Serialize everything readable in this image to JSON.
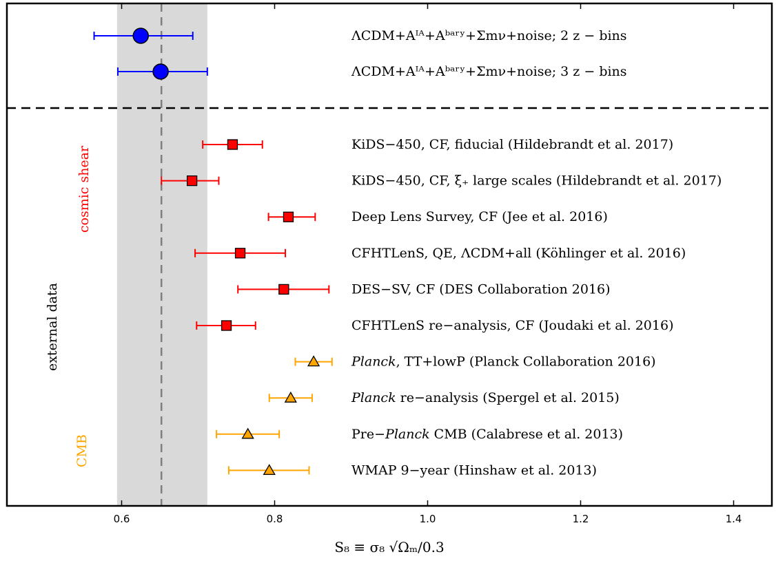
{
  "chart_data": {
    "type": "scatter",
    "subtype": "forest-plot",
    "xlabel": "S₈ ≡ σ₈ √Ωₘ/0.3",
    "xlim": [
      0.45,
      1.45
    ],
    "xticks": [
      0.6,
      0.8,
      1.0,
      1.2,
      1.4
    ],
    "tick_labels": [
      "0.6",
      "0.8",
      "1.0",
      "1.2",
      "1.4"
    ],
    "reference": {
      "value": 0.652,
      "band": [
        0.594,
        0.712
      ],
      "band_color": "#d9d9d9",
      "line_color": "#7f7f7f"
    },
    "colors": {
      "this_work": "#0000ff",
      "cosmic_shear": "#ff0000",
      "cmb": "#ffa500"
    },
    "groups": [
      {
        "name": "cosmic shear",
        "color": "#ff0000"
      },
      {
        "name": "external data",
        "color": "#000000"
      },
      {
        "name": "CMB",
        "color": "#ffa500"
      }
    ],
    "points": [
      {
        "label": "ΛCDM+Aᴵᴬ+Aᵇᵃʳʸ+Σmν+noise; 2 z − bins",
        "value": 0.625,
        "low": 0.564,
        "high": 0.693,
        "marker": "circle",
        "group": "this_work"
      },
      {
        "label": "ΛCDM+Aᴵᴬ+Aᵇᵃʳʸ+Σmν+noise; 3 z − bins",
        "value": 0.651,
        "low": 0.595,
        "high": 0.712,
        "marker": "circle",
        "group": "this_work"
      },
      {
        "label": "KiDS−450,  CF,  fiducial (Hildebrandt et al.  2017)",
        "value": 0.745,
        "low": 0.706,
        "high": 0.784,
        "marker": "square",
        "group": "cosmic_shear"
      },
      {
        "label": "KiDS−450,  CF,  ξ₊  large scales (Hildebrandt et al.  2017)",
        "value": 0.692,
        "low": 0.652,
        "high": 0.727,
        "marker": "square",
        "group": "cosmic_shear"
      },
      {
        "label": "Deep Lens Survey,  CF (Jee et al.  2016)",
        "value": 0.818,
        "low": 0.792,
        "high": 0.853,
        "marker": "square",
        "group": "cosmic_shear"
      },
      {
        "label": "CFHTLenS,  QE,  ΛCDM+all (Köhlinger et al.  2016)",
        "value": 0.755,
        "low": 0.696,
        "high": 0.814,
        "marker": "square",
        "group": "cosmic_shear"
      },
      {
        "label": "DES−SV,  CF (DES Collaboration 2016)",
        "value": 0.812,
        "low": 0.752,
        "high": 0.871,
        "marker": "square",
        "group": "cosmic_shear"
      },
      {
        "label": "CFHTLenS re−analysis,  CF (Joudaki et al.  2016)",
        "value": 0.737,
        "low": 0.698,
        "high": 0.775,
        "marker": "square",
        "group": "cosmic_shear"
      },
      {
        "label_it": "Planck",
        "label_rest": ",  TT+lowP (Planck Collaboration 2016)",
        "value": 0.851,
        "low": 0.827,
        "high": 0.875,
        "marker": "triangle",
        "group": "cmb"
      },
      {
        "label_it": "Planck",
        "label_rest": " re−analysis (Spergel et al.  2015)",
        "value": 0.821,
        "low": 0.793,
        "high": 0.849,
        "marker": "triangle",
        "group": "cmb"
      },
      {
        "label_pre": "Pre−",
        "label_it": "Planck",
        "label_rest": " CMB (Calabrese et al.  2013)",
        "value": 0.765,
        "low": 0.724,
        "high": 0.806,
        "marker": "triangle",
        "group": "cmb"
      },
      {
        "label": "WMAP 9−year (Hinshaw et al.  2013)",
        "value": 0.793,
        "low": 0.74,
        "high": 0.845,
        "marker": "triangle",
        "group": "cmb"
      }
    ]
  }
}
